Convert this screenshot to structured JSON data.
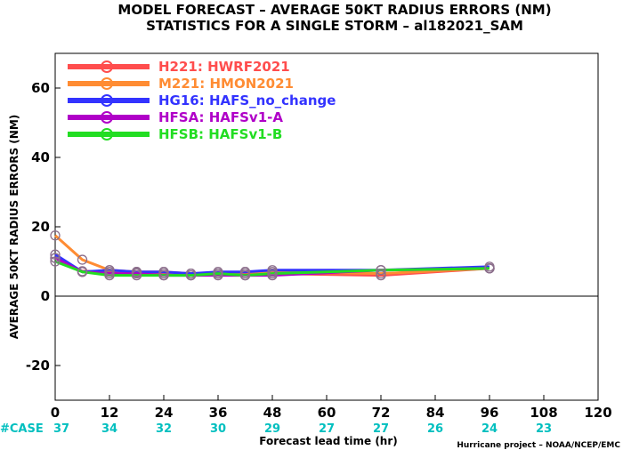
{
  "chart_data": {
    "type": "line",
    "title": "MODEL FORECAST – AVERAGE 50KT RADIUS ERRORS (NM)",
    "subtitle": "STATISTICS FOR A SINGLE STORM – al182021_SAM",
    "xlabel": "Forecast lead time (hr)",
    "ylabel": "AVERAGE 50KT RADIUS ERRORS (NM)",
    "xlim": [
      0,
      120
    ],
    "ylim": [
      -30,
      70
    ],
    "xticks": [
      0,
      12,
      24,
      36,
      48,
      60,
      72,
      84,
      96,
      108,
      120
    ],
    "yticks": [
      -20,
      0,
      20,
      40,
      60
    ],
    "zero_line": true,
    "legend_position": "top-left",
    "case_label": "#CASE",
    "case_color": "#00bfbf",
    "cases": [
      {
        "x": 0,
        "n": "37"
      },
      {
        "x": 12,
        "n": "34"
      },
      {
        "x": 24,
        "n": "32"
      },
      {
        "x": 36,
        "n": "30"
      },
      {
        "x": 48,
        "n": "29"
      },
      {
        "x": 60,
        "n": "27"
      },
      {
        "x": 72,
        "n": "27"
      },
      {
        "x": 84,
        "n": "26"
      },
      {
        "x": 96,
        "n": "24"
      },
      {
        "x": 108,
        "n": "23"
      }
    ],
    "x": [
      0,
      6,
      12,
      18,
      24,
      30,
      36,
      42,
      48,
      72,
      96
    ],
    "series": [
      {
        "name": "H221: HWRF2021",
        "color": "#ff4d4d",
        "values": [
          11,
          7.2,
          7,
          6.8,
          6.5,
          6.5,
          6.5,
          6.5,
          6.5,
          6,
          8
        ]
      },
      {
        "name": "M221: HMON2021",
        "color": "#ff8c33",
        "values": [
          17.5,
          10.5,
          7.5,
          7,
          7,
          6.5,
          6.5,
          7,
          7,
          6.5,
          8
        ]
      },
      {
        "name": "HG16: HAFS_no_change",
        "color": "#3333ff",
        "values": [
          12,
          7,
          7.5,
          7,
          7,
          6.5,
          7,
          7,
          7.5,
          7.5,
          8.5
        ]
      },
      {
        "name": "HFSA: HAFSv1-A",
        "color": "#b000c8",
        "values": [
          11,
          7,
          6.5,
          6.5,
          6,
          6,
          6,
          6,
          6,
          7.5,
          8
        ]
      },
      {
        "name": "HFSB: HAFSv1-B",
        "color": "#22dd22",
        "values": [
          10,
          7,
          6,
          6,
          6,
          6,
          6.5,
          6,
          6.5,
          7.5,
          8
        ]
      }
    ],
    "credit": "Hurricane project – NOAA/NCEP/EMC"
  }
}
